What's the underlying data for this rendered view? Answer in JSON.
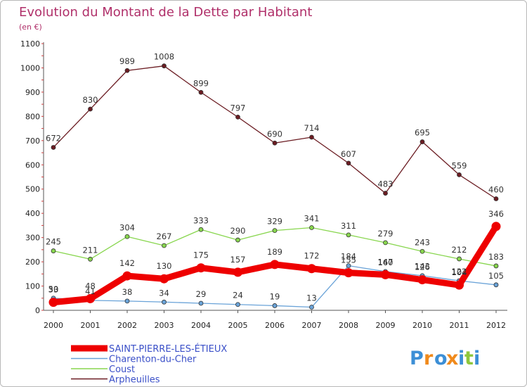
{
  "chart_data": {
    "type": "line",
    "title": "Evolution du Montant de la Dette par Habitant",
    "unit": "(en €)",
    "xlabel": "",
    "ylabel": "",
    "ylim": [
      0,
      1100
    ],
    "yticks": [
      0,
      100,
      200,
      300,
      400,
      500,
      600,
      700,
      800,
      900,
      1000,
      1100
    ],
    "x": [
      "2000",
      "2001",
      "2002",
      "2003",
      "2004",
      "2005",
      "2006",
      "2007",
      "2008",
      "2009",
      "2010",
      "2011",
      "2012"
    ],
    "grid": false,
    "legend_position": "bottom-left",
    "series": [
      {
        "name": "SAINT-PIERRE-LES-ÉTIEUX",
        "color": "#ee0000",
        "values": [
          33,
          48,
          142,
          130,
          175,
          157,
          189,
          172,
          155,
          147,
          126,
          104,
          346
        ]
      },
      {
        "name": "Charenton-du-Cher",
        "color": "#6aa3d8",
        "values": [
          50,
          41,
          38,
          34,
          29,
          24,
          19,
          13,
          184,
          160,
          143,
          122,
          105
        ]
      },
      {
        "name": "Coust",
        "color": "#88d64e",
        "values": [
          245,
          211,
          304,
          267,
          333,
          290,
          329,
          341,
          311,
          279,
          243,
          212,
          183
        ]
      },
      {
        "name": "Arpheuilles",
        "color": "#6b1c22",
        "values": [
          672,
          830,
          989,
          1008,
          899,
          797,
          690,
          714,
          607,
          483,
          695,
          559,
          460
        ]
      }
    ]
  },
  "logo": {
    "text": "Proxiti",
    "letter_colors": [
      "#3c8fd6",
      "#f08a1c",
      "#3c8fd6",
      "#f08a1c",
      "#3c8fd6",
      "#8ec73c",
      "#3c8fd6"
    ]
  }
}
